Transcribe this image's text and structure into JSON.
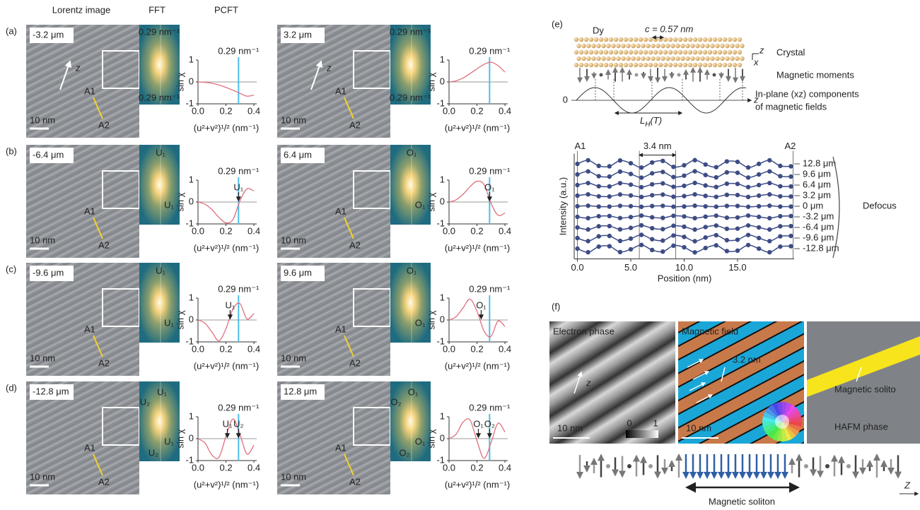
{
  "column_headers": [
    "Lorentz image",
    "FFT",
    "PCFT"
  ],
  "pcft_axes": {
    "x": [
      0,
      0.05,
      0.1,
      0.15,
      0.2,
      0.25,
      0.3,
      0.35,
      0.4
    ],
    "xlim": [
      0,
      0.42
    ],
    "xticks": [
      {
        "value": 0,
        "label": "0.0"
      },
      {
        "value": 0.2,
        "label": "0.2"
      },
      {
        "value": 0.4,
        "label": "0.4"
      }
    ],
    "ylim": [
      -1,
      1
    ],
    "yticks": [
      1,
      0,
      -1
    ],
    "xlabel": "(u²+v²)¹/² (nm⁻¹)",
    "ylabel": "sin χ",
    "line_x": 0.29,
    "line_label": "0.29 nm⁻¹",
    "curve_color": "#e0707e",
    "line_color": "#4cbde6"
  },
  "rows": [
    {
      "label": "(a)",
      "panels": [
        {
          "defocus": "-3.2 μm",
          "scale_bar": "10 nm",
          "a1": "A1",
          "a2": "A2",
          "z": "z",
          "fft_labels": [
            "0.29 nm⁻¹",
            "0.29 nm⁻¹"
          ],
          "sin_chi": [
            0,
            -0.02,
            -0.06,
            -0.14,
            -0.25,
            -0.38,
            -0.52,
            -0.65,
            -0.6
          ],
          "points": []
        },
        {
          "defocus": "3.2 μm",
          "scale_bar": "10 nm",
          "a1": "A1",
          "a2": "A2",
          "z": "z",
          "fft_labels": [
            "0.29 nm⁻¹",
            "0.29 nm⁻¹"
          ],
          "sin_chi": [
            0,
            0.05,
            0.18,
            0.38,
            0.6,
            0.8,
            0.9,
            0.75,
            0.45
          ],
          "points": []
        }
      ]
    },
    {
      "label": "(b)",
      "panels": [
        {
          "defocus": "-6.4 μm",
          "scale_bar": "10 nm",
          "a1": "A1",
          "a2": "A2",
          "fft_labels": [
            "U₁",
            "U₁"
          ],
          "sin_chi": [
            0,
            -0.1,
            -0.35,
            -0.7,
            -0.95,
            -0.8,
            0.05,
            0.6,
            0.5
          ],
          "points": [
            {
              "label": "U₁",
              "x": 0.29
            }
          ]
        },
        {
          "defocus": "6.4 μm",
          "scale_bar": "10 nm",
          "a1": "A1",
          "a2": "A2",
          "fft_labels": [
            "O₁",
            "O₁"
          ],
          "sin_chi": [
            0,
            0.1,
            0.35,
            0.7,
            0.95,
            0.8,
            -0.05,
            -0.6,
            -0.5
          ],
          "points": [
            {
              "label": "O₁",
              "x": 0.29
            }
          ]
        }
      ]
    },
    {
      "label": "(c)",
      "panels": [
        {
          "defocus": "-9.6 μm",
          "scale_bar": "10 nm",
          "a1": "A1",
          "a2": "A2",
          "fft_labels": [
            "U₁",
            "U₁"
          ],
          "sin_chi": [
            0,
            -0.15,
            -0.55,
            -0.95,
            -0.4,
            0.5,
            0.75,
            0.05,
            0.3
          ],
          "points": [
            {
              "label": "U₁",
              "x": 0.23
            }
          ]
        },
        {
          "defocus": "9.6 μm",
          "scale_bar": "10 nm",
          "a1": "A1",
          "a2": "A2",
          "fft_labels": [
            "O₁",
            "O₁"
          ],
          "sin_chi": [
            0,
            0.15,
            0.55,
            0.95,
            0.4,
            -0.5,
            -0.75,
            -0.05,
            -0.3
          ],
          "points": [
            {
              "label": "O₁",
              "x": 0.23
            }
          ]
        }
      ]
    },
    {
      "label": "(d)",
      "panels": [
        {
          "defocus": "-12.8 μm",
          "scale_bar": "10 nm",
          "a1": "A1",
          "a2": "A2",
          "fft_labels": [
            "U₂",
            "U₁",
            "U₁",
            "U₂"
          ],
          "sin_chi": [
            0,
            -0.2,
            -0.75,
            -0.85,
            0.1,
            0.9,
            0.2,
            -0.7,
            -0.3
          ],
          "points": [
            {
              "label": "U₁",
              "x": 0.21
            },
            {
              "label": "U₂",
              "x": 0.29
            }
          ]
        },
        {
          "defocus": "12.8 μm",
          "scale_bar": "10 nm",
          "a1": "A1",
          "a2": "A2",
          "fft_labels": [
            "O₂",
            "O₁",
            "O₁",
            "O₂"
          ],
          "sin_chi": [
            0,
            0.2,
            0.75,
            0.85,
            -0.1,
            -0.9,
            -0.2,
            0.7,
            0.3
          ],
          "points": [
            {
              "label": "O₁",
              "x": 0.21
            },
            {
              "label": "O₂",
              "x": 0.29
            }
          ]
        }
      ]
    }
  ],
  "panel_e": {
    "label": "(e)",
    "schematic": {
      "element": "Dy",
      "lattice": "c = 0.57 nm",
      "crystal": "Crystal",
      "moments": "Magnetic moments",
      "field": [
        "In-plane (xz) components",
        "of magnetic fields"
      ],
      "zero": "0",
      "z": "z",
      "x": "x",
      "period": {
        "main": "L",
        "sub": "H",
        "rest": "(T)"
      }
    },
    "chart_data": {
      "type": "line",
      "start_label": "A1",
      "end_label": "A2",
      "spacing_label": "3.4 nm",
      "ylabel": "Intensity (a.u.)",
      "xlabel": "Position (nm)",
      "xlim": [
        -0.3,
        20.3
      ],
      "ylim": [
        -0.7,
        8.7
      ],
      "xticks": [
        {
          "value": 0,
          "label": "0.0"
        },
        {
          "value": 5,
          "label": "5.0"
        },
        {
          "value": 10,
          "label": "10.0"
        },
        {
          "value": 15,
          "label": "15.0"
        }
      ],
      "vertical_lines": [
        0,
        5.8,
        9.2,
        20.2
      ],
      "legend_title": "Defocus",
      "color": "#3d4c85",
      "x": [
        0,
        1,
        2,
        3,
        4,
        5,
        6,
        7,
        8,
        9,
        10,
        11,
        12,
        13,
        14,
        15,
        16,
        17,
        18,
        19,
        20
      ],
      "series": [
        {
          "name": "12.8 μm",
          "values": [
            8,
            8.34,
            7.81,
            7.77,
            8.32,
            8.06,
            7.65,
            8.13,
            8.28,
            7.72,
            7.87,
            8.35,
            7.94,
            7.69,
            8.23,
            8.19,
            7.66,
            8,
            8.34,
            7.81,
            7.77
          ]
        },
        {
          "name": "9.6 μm",
          "values": [
            7,
            7.29,
            6.84,
            6.8,
            7.27,
            7.05,
            6.7,
            7.11,
            7.24,
            6.76,
            6.89,
            7.3,
            6.95,
            6.73,
            7.2,
            7.16,
            6.71,
            7,
            7.29,
            6.84,
            6.8
          ]
        },
        {
          "name": "6.4 μm",
          "values": [
            6,
            6.19,
            5.89,
            5.87,
            6.18,
            6.04,
            5.8,
            6.07,
            6.16,
            5.84,
            5.93,
            6.2,
            5.96,
            5.82,
            6.13,
            6.11,
            5.81,
            6,
            6.19,
            5.89,
            5.87
          ]
        },
        {
          "name": "3.2 μm",
          "values": [
            5,
            5.12,
            4.94,
            4.92,
            5.11,
            5.02,
            4.88,
            5.04,
            5.1,
            4.9,
            4.96,
            5.12,
            4.98,
            4.89,
            5.08,
            5.06,
            4.88,
            5,
            5.12,
            4.94,
            4.92
          ]
        },
        {
          "name": "0 μm",
          "values": [
            4,
            4.05,
            3.97,
            3.97,
            4.04,
            4.01,
            3.95,
            4.02,
            4.04,
            3.96,
            3.98,
            4.05,
            3.99,
            3.96,
            4.03,
            4.03,
            3.95,
            4,
            4.05,
            3.97,
            3.97
          ]
        },
        {
          "name": "-3.2 μm",
          "values": [
            3,
            2.88,
            3.06,
            3.08,
            2.89,
            2.98,
            3.12,
            2.96,
            2.9,
            3.1,
            3.04,
            2.88,
            3.02,
            3.11,
            2.92,
            2.94,
            3.12,
            3,
            2.88,
            3.06,
            3.08
          ]
        },
        {
          "name": "-6.4 μm",
          "values": [
            2,
            1.81,
            2.11,
            2.13,
            1.82,
            1.96,
            2.2,
            1.93,
            1.84,
            2.16,
            2.07,
            1.8,
            2.04,
            2.18,
            1.87,
            1.89,
            2.19,
            2,
            1.81,
            2.11,
            2.13
          ]
        },
        {
          "name": "-9.6 μm",
          "values": [
            1,
            0.71,
            1.16,
            1.2,
            0.73,
            0.95,
            1.3,
            0.89,
            0.76,
            1.24,
            1.11,
            0.7,
            1.05,
            1.27,
            0.8,
            0.84,
            1.29,
            1,
            0.71,
            1.16,
            1.2
          ]
        },
        {
          "name": "-12.8 μm",
          "values": [
            0,
            -0.34,
            0.19,
            0.23,
            -0.32,
            -0.06,
            0.35,
            -0.13,
            -0.28,
            0.28,
            0.13,
            -0.35,
            0.06,
            0.31,
            -0.23,
            -0.19,
            0.34,
            0,
            -0.34,
            0.19,
            0.23
          ]
        }
      ]
    }
  },
  "panel_f": {
    "label": "(f)",
    "phase": {
      "title": "Electron phase",
      "scale_bar": "10 nm",
      "z": "z",
      "colorbar": [
        0,
        1
      ]
    },
    "field": {
      "title": "Magnetic field",
      "width": "3.2 nm",
      "scale_bar": "10 nm"
    },
    "model": {
      "soliton": "Magnetic solito",
      "phase": "HAFM phase"
    },
    "spins": {
      "label": "Magnetic soliton",
      "axis": "Z"
    }
  }
}
